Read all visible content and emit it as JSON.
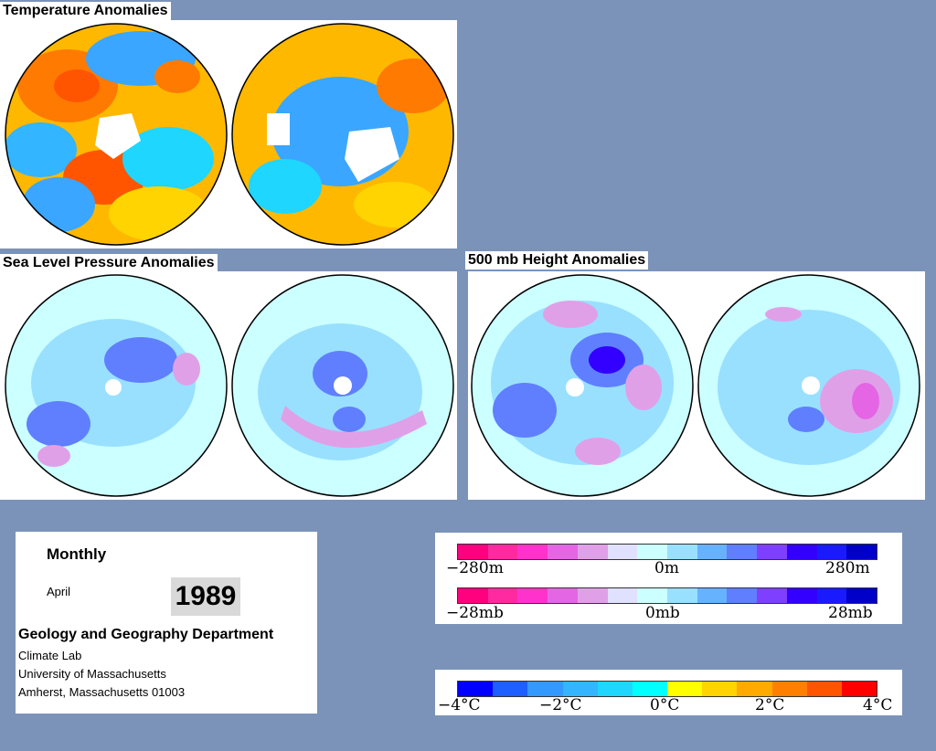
{
  "titles": {
    "temperature": "Temperature Anomalies",
    "slp": "Sea Level Pressure Anomalies",
    "height500": "500 mb Height Anomalies"
  },
  "info": {
    "period": "Monthly",
    "month": "April",
    "year": "1989",
    "department": "Geology and Geography Department",
    "line1": "Climate Lab",
    "line2": "University of Massachusetts",
    "line3": "Amherst, Massachusetts 01003"
  },
  "legend_height": {
    "min": "−280m",
    "mid": "0m",
    "max": "280m",
    "colors": [
      "#ff007f",
      "#ff2aa0",
      "#ff33cc",
      "#e466e4",
      "#e0a0e8",
      "#e0e0ff",
      "#ccffff",
      "#99e0ff",
      "#66b2ff",
      "#5f7fff",
      "#7f3fff",
      "#3300ff",
      "#1a1aff",
      "#0000c8"
    ]
  },
  "legend_pressure": {
    "min": "−28mb",
    "mid": "0mb",
    "max": "28mb",
    "colors": [
      "#ff007f",
      "#ff2aa0",
      "#ff33cc",
      "#e466e4",
      "#e0a0e8",
      "#e0e0ff",
      "#ccffff",
      "#99e0ff",
      "#66b2ff",
      "#5f7fff",
      "#7f3fff",
      "#3300ff",
      "#1a1aff",
      "#0000c8"
    ]
  },
  "legend_temperature": {
    "labels": [
      "−4°C",
      "−2°C",
      "0°C",
      "2°C",
      "4°C"
    ],
    "colors": [
      "#0000ff",
      "#1f5fff",
      "#3399ff",
      "#33b5ff",
      "#1fd6ff",
      "#00ffff",
      "#ffff00",
      "#ffd400",
      "#ffaa00",
      "#ff7f00",
      "#ff5500",
      "#ff0000"
    ]
  },
  "colors": {
    "background": "#7b93b8",
    "cold": "#3399ff",
    "warm": "#ff8800",
    "neutral_pressure": "#ccffff"
  }
}
